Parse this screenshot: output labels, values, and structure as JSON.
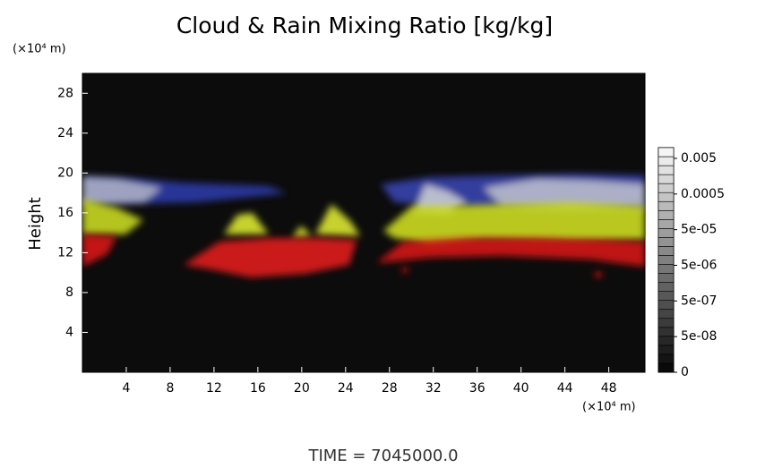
{
  "chart_data": {
    "type": "image",
    "title": "Cloud & Rain Mixing Ratio [kg/kg]",
    "y_unit_label": "(×10⁴ m)",
    "ylabel": "Height",
    "x_unit_label": "(×10⁴ m)",
    "xlim": [
      0,
      51.3
    ],
    "xticks": [
      4,
      8,
      12,
      16,
      20,
      24,
      28,
      32,
      36,
      40,
      44,
      48
    ],
    "ylim": [
      0,
      30
    ],
    "yticks": [
      4,
      8,
      12,
      16,
      20,
      24,
      28
    ],
    "colorbar": {
      "log_scale": true,
      "clim": [
        5e-09,
        0.01
      ],
      "ticks": [
        0.005,
        0.0005,
        {
          "value": 5e-05,
          "label": "5e-05"
        },
        {
          "value": 5e-06,
          "label": "5e-06"
        },
        {
          "value": 5e-07,
          "label": "5e-07"
        },
        {
          "value": 5e-08,
          "label": "5e-08"
        },
        0
      ]
    },
    "footer": "TIME = 7045000.0"
  }
}
